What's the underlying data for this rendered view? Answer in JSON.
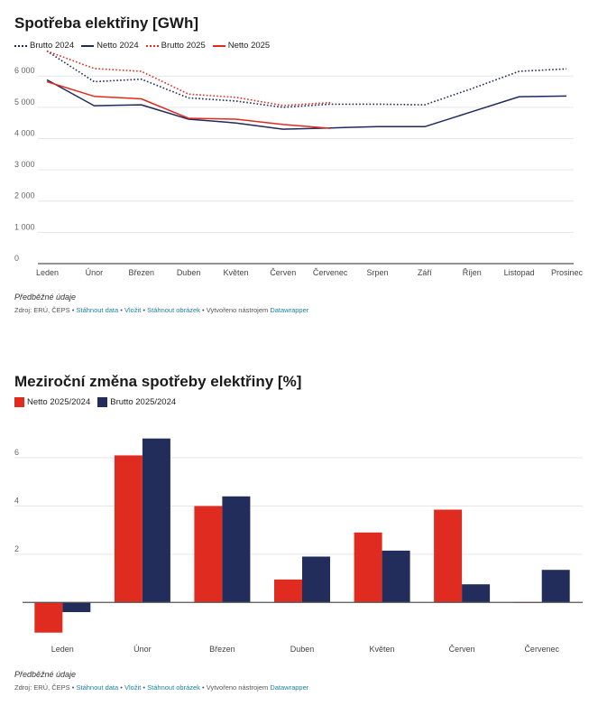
{
  "colors": {
    "brutto2024": "#1e2a5a",
    "netto2024": "#1e2a5a",
    "brutto2025": "#e02b20",
    "netto2025": "#e02b20",
    "netto_bar": "#e02b20",
    "brutto_bar": "#232d5c",
    "link": "#1d81a2"
  },
  "footer": {
    "note": "Předběžné údaje",
    "source_prefix": "Zdroj: ERÚ, ČEPS • ",
    "link_data": "Stáhnout data",
    "sep1": " • ",
    "link_embed": "Vložit",
    "sep2": " • ",
    "link_image": "Stáhnout obrázek",
    "made_with": " • Vytvořeno nástrojem ",
    "link_dw": "Datawrapper"
  },
  "chart_data": [
    {
      "type": "line",
      "title": "Spotřeba elektřiny [GWh]",
      "categories": [
        "Leden",
        "Únor",
        "Březen",
        "Duben",
        "Květen",
        "Červen",
        "Červenec",
        "Srpen",
        "Září",
        "Říjen",
        "Listopad",
        "Prosinec"
      ],
      "yticks": [
        "0",
        "1 000",
        "2 000",
        "3 000",
        "4 000",
        "5 000",
        "6 000"
      ],
      "ylim": [
        0,
        6700
      ],
      "series": [
        {
          "name": "Brutto 2024",
          "style": "dotted",
          "values": [
            6800,
            5820,
            5900,
            5300,
            5200,
            5000,
            5100,
            5100,
            5080,
            5600,
            6150,
            6230
          ]
        },
        {
          "name": "Netto 2024",
          "style": "solid",
          "values": [
            5880,
            5050,
            5080,
            4620,
            4500,
            4300,
            4340,
            4380,
            4380,
            4860,
            5340,
            5360
          ]
        },
        {
          "name": "Brutto 2025",
          "style": "dotted",
          "values": [
            6800,
            6240,
            6150,
            5420,
            5320,
            5060,
            5150,
            null,
            null,
            null,
            null,
            null
          ]
        },
        {
          "name": "Netto 2025",
          "style": "solid",
          "values": [
            5820,
            5350,
            5270,
            4650,
            4620,
            4450,
            4330,
            null,
            null,
            null,
            null,
            null
          ]
        }
      ]
    },
    {
      "type": "bar",
      "title": "Meziroční změna spotřeby elektřiny [%]",
      "categories": [
        "Leden",
        "Únor",
        "Březen",
        "Duben",
        "Květen",
        "Červen",
        "Červenec"
      ],
      "yticks": [
        "2",
        "4",
        "6"
      ],
      "ylim": [
        -1.6,
        7.2
      ],
      "series": [
        {
          "name": "Netto 2025/2024",
          "values": [
            -1.25,
            6.1,
            4.0,
            0.95,
            2.9,
            3.85,
            0.0
          ]
        },
        {
          "name": "Brutto 2025/2024",
          "values": [
            -0.4,
            6.8,
            4.4,
            1.9,
            2.15,
            0.75,
            1.35
          ]
        }
      ]
    }
  ]
}
